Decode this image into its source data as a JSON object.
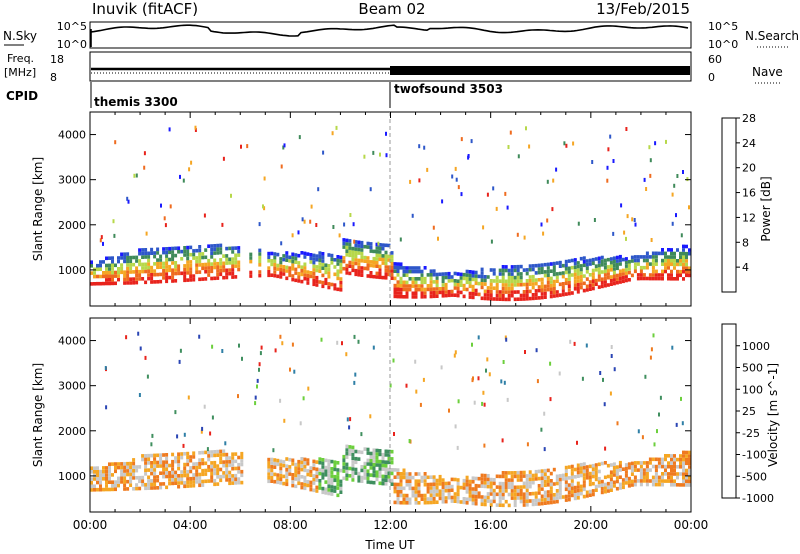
{
  "header": {
    "station": "Inuvik (fitACF)",
    "beam": "Beam 02",
    "date": "13/Feb/2015"
  },
  "noise_panel": {
    "left_label": "N.Sky",
    "right_label": "N.Search",
    "left_ticks": [
      "10^5",
      "10^0"
    ],
    "right_ticks": [
      "10^5",
      "10^0"
    ]
  },
  "freq_panel": {
    "left_label_1": "Freq.",
    "left_label_2": "[MHz]",
    "right_label": "Nave",
    "left_ticks": [
      "18",
      "8"
    ],
    "right_ticks": [
      "60",
      "0"
    ]
  },
  "cpid": {
    "label": "CPID",
    "modes": [
      {
        "name": "themis 3300",
        "start_hour": 0
      },
      {
        "name": "twofsound 3503",
        "start_hour": 12
      }
    ]
  },
  "chart_data": [
    {
      "type": "heatmap",
      "panel": "power",
      "xlabel": "",
      "ylabel": "Slant Range [km]",
      "x_range_hours": [
        0,
        24
      ],
      "ylim": [
        200,
        4500
      ],
      "y_ticks": [
        "1000",
        "2000",
        "3000",
        "4000"
      ],
      "colorbar": {
        "label": "Power [dB]",
        "tick_labels": [
          "4",
          "8",
          "12",
          "16",
          "20",
          "24",
          "28"
        ],
        "colors": [
          "#1a1aff",
          "#2e57c9",
          "#3f8a5a",
          "#b7d84a",
          "#f5a623",
          "#ef6b1f",
          "#e8231c"
        ]
      }
    },
    {
      "type": "heatmap",
      "panel": "velocity",
      "xlabel": "Time UT",
      "ylabel": "Slant Range [km]",
      "x_range_hours": [
        0,
        24
      ],
      "ylim": [
        200,
        4500
      ],
      "x_ticks": [
        "00:00",
        "04:00",
        "08:00",
        "12:00",
        "16:00",
        "20:00",
        "00:00"
      ],
      "y_ticks": [
        "1000",
        "2000",
        "3000",
        "4000"
      ],
      "colorbar": {
        "label": "Velocity [m s^-1]",
        "tick_labels": [
          "1000",
          "500",
          "100",
          "25",
          "-25",
          "-100",
          "-500",
          "-1000"
        ],
        "colors": [
          "#2a45b4",
          "#2f7fa6",
          "#3f8f5f",
          "#6ccf3c",
          "#c8c8c8",
          "#f5a623",
          "#ef7a1f",
          "#e8231c"
        ]
      }
    }
  ]
}
